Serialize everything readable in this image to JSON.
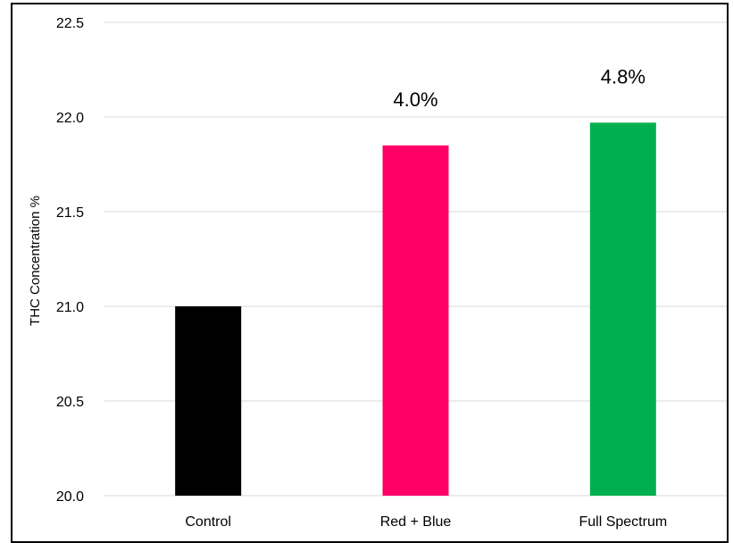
{
  "chart_data": {
    "type": "bar",
    "title": "",
    "xlabel": "",
    "ylabel": "THC Concentration %",
    "categories": [
      "Control",
      "Red + Blue",
      "Full Spectrum"
    ],
    "values": [
      21.0,
      21.85,
      21.97
    ],
    "colors": [
      "#000000",
      "#ff0066",
      "#00b050"
    ],
    "data_labels": [
      "",
      "4.0%",
      "4.8%"
    ],
    "ylim": [
      20.0,
      22.5
    ],
    "yticks": [
      "20.0",
      "20.5",
      "21.0",
      "21.5",
      "22.0",
      "22.5"
    ],
    "grid": true
  }
}
